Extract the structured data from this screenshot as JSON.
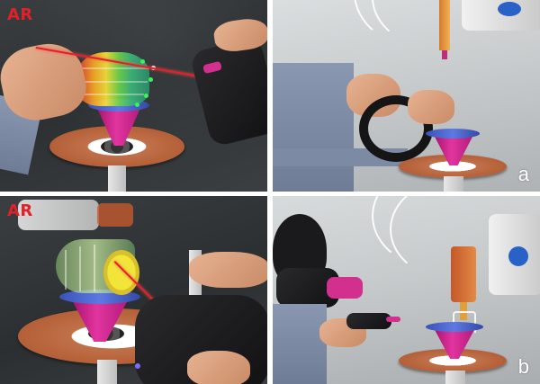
{
  "panels": [
    {
      "position": "top-left",
      "ar_label": "AR"
    },
    {
      "position": "top-right",
      "letter": "a"
    },
    {
      "position": "bottom-left",
      "ar_label": "AR"
    },
    {
      "position": "bottom-right",
      "letter": "b"
    }
  ],
  "colors": {
    "ar_label": "#e0212a",
    "cone_magenta": "#e2359f",
    "cone_rim_blue": "#5d79e2",
    "turntable_copper": "#b45f37",
    "laser_red": "#e0212a",
    "grid_separator": "#ffffff"
  },
  "objects": {
    "rainbow_model": "rainbow-gradient-preview",
    "cylinder_model": "green-cylinder-preview",
    "pointer": "red-laser-ray"
  }
}
